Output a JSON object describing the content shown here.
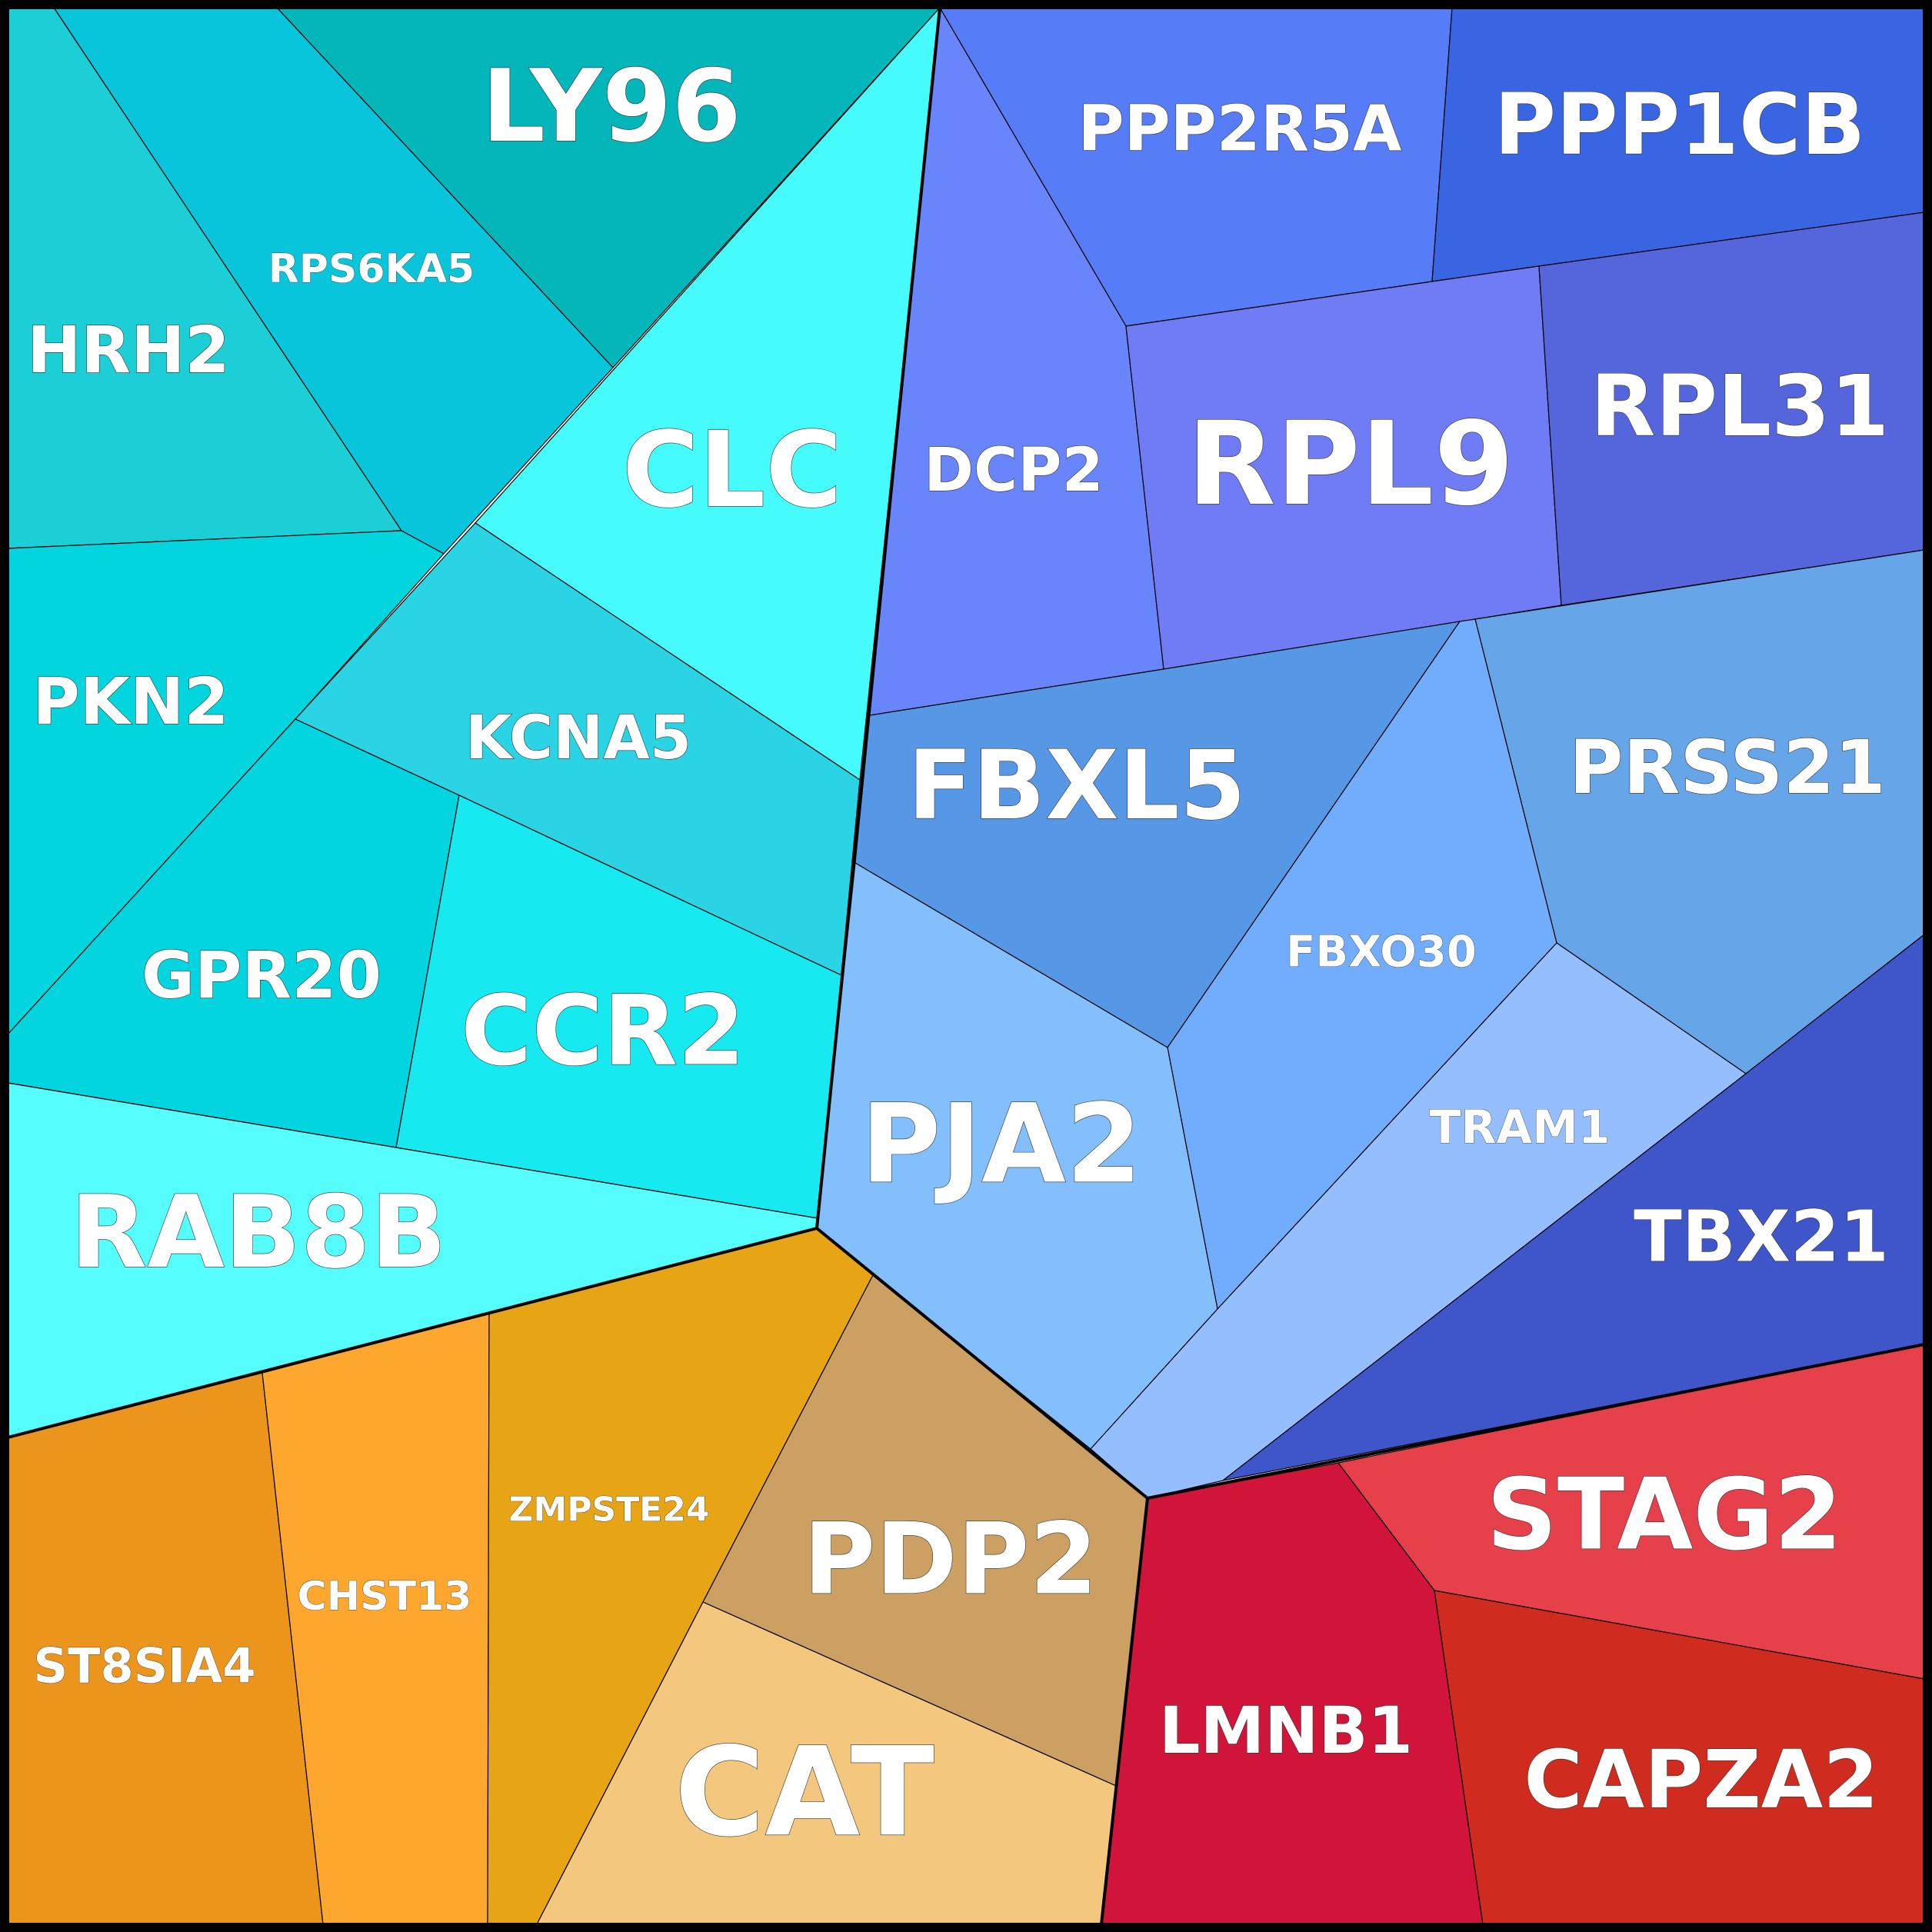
{
  "chart_data": {
    "type": "voronoi-treemap",
    "groups": [
      {
        "cells": [
          {
            "label": "LY96",
            "color": "#02b6b9"
          },
          {
            "label": "RPS6KA5",
            "color": "#08c5dc"
          },
          {
            "label": "HRH2",
            "color": "#1cced6"
          },
          {
            "label": "CLC",
            "color": "#46fbfb"
          },
          {
            "label": "PKN2",
            "color": "#02d5de"
          },
          {
            "label": "KCNA5",
            "color": "#2bd4e4"
          },
          {
            "label": "GPR20",
            "color": "#02d5df"
          },
          {
            "label": "CCR2",
            "color": "#16e9f0"
          },
          {
            "label": "RAB8B",
            "color": "#55fefd"
          }
        ]
      },
      {
        "cells": [
          {
            "label": "PPP2R5A",
            "color": "#567cf7"
          },
          {
            "label": "PPP1CB",
            "color": "#3964e2"
          },
          {
            "label": "DCP2",
            "color": "#6885fb"
          },
          {
            "label": "RPL9",
            "color": "#707cf5"
          },
          {
            "label": "RPL31",
            "color": "#5566dc"
          },
          {
            "label": "FBXL5",
            "color": "#5698e6"
          },
          {
            "label": "PRSS21",
            "color": "#66a6e8"
          },
          {
            "label": "FBXO30",
            "color": "#72acfd"
          },
          {
            "label": "PJA2",
            "color": "#83bffd"
          },
          {
            "label": "TRAM1",
            "color": "#94befd"
          },
          {
            "label": "TBX21",
            "color": "#3f56cb"
          }
        ]
      },
      {
        "cells": [
          {
            "label": "ST8SIA4",
            "color": "#ec951c"
          },
          {
            "label": "CHST13",
            "color": "#fea72e"
          },
          {
            "label": "ZMPSTE24",
            "color": "#e7a516"
          },
          {
            "label": "PDP2",
            "color": "#cc9f62"
          },
          {
            "label": "CAT",
            "color": "#f3c77d"
          }
        ]
      },
      {
        "cells": [
          {
            "label": "STAG2",
            "color": "#e6404a"
          },
          {
            "label": "LMNB1",
            "color": "#d1143a"
          },
          {
            "label": "CAPZA2",
            "color": "#cf2b1e"
          }
        ]
      }
    ]
  }
}
